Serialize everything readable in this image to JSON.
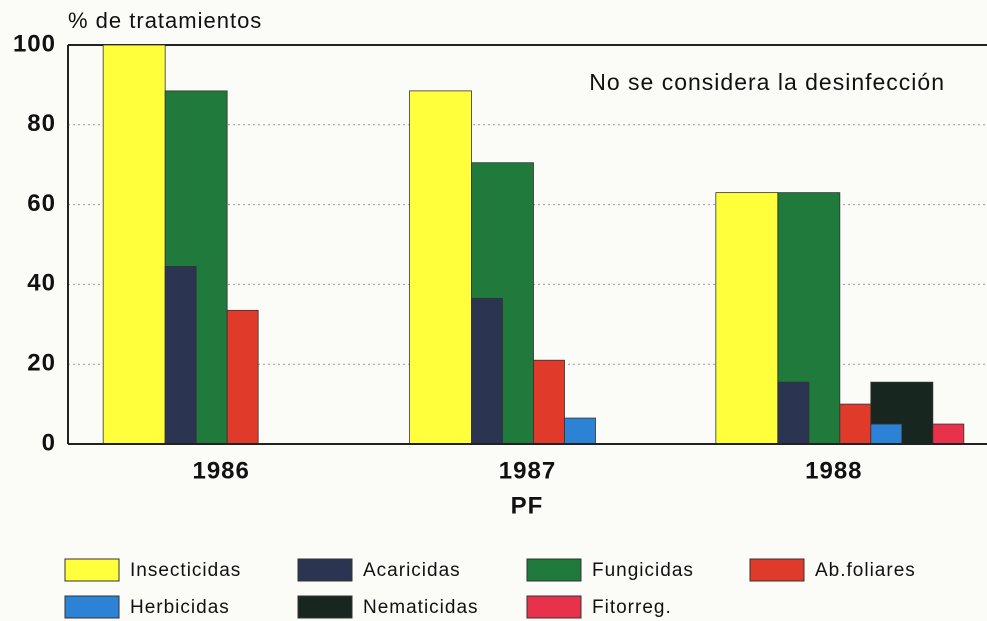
{
  "chart_data": {
    "type": "bar",
    "ylabel": "% de tratamientos",
    "xlabel": "PF",
    "annotation": "No se considera la desinfección",
    "categories": [
      "1986",
      "1987",
      "1988"
    ],
    "series": [
      {
        "name": "Insecticidas",
        "color": "#ffff3c",
        "values": [
          100,
          88.5,
          63
        ]
      },
      {
        "name": "Acaricidas",
        "color": "#2b3552",
        "values": [
          44.5,
          36.5,
          15.5
        ]
      },
      {
        "name": "Fungicidas",
        "color": "#1f7a3b",
        "values": [
          88.5,
          70.5,
          63
        ]
      },
      {
        "name": "Ab.foliares",
        "color": "#e03b2a",
        "values": [
          33.5,
          21,
          10
        ]
      },
      {
        "name": "Herbicidas",
        "color": "#2c82d4",
        "values": [
          null,
          6.5,
          5
        ]
      },
      {
        "name": "Nematicidas",
        "color": "#17261f",
        "values": [
          null,
          null,
          15.5
        ]
      },
      {
        "name": "Fitorreg.",
        "color": "#e8324b",
        "values": [
          null,
          null,
          5
        ]
      }
    ],
    "ylim": [
      0,
      100
    ],
    "yticks": [
      0,
      20,
      40,
      60,
      80,
      100
    ],
    "grid": true
  }
}
